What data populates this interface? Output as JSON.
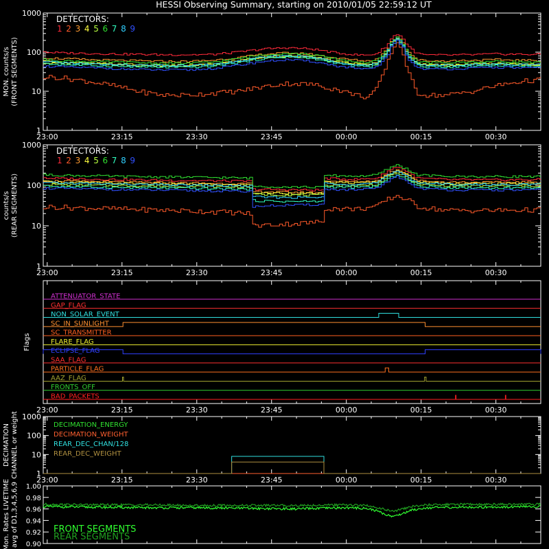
{
  "title": "HESSI Observing Summary, starting on 2010/01/05 22:59:12 UT",
  "time_ticks": [
    "23:00",
    "23:15",
    "23:30",
    "23:45",
    "00:00",
    "00:15",
    "00:30"
  ],
  "colors": {
    "background": "#000000",
    "axes": "#ffffff",
    "det": [
      "#ff2a3a",
      "#ff5a2a",
      "#ff9a30",
      "#ffff40",
      "#b8ff40",
      "#30e030",
      "#30ffc0",
      "#30d0ff",
      "#3050ff"
    ]
  },
  "chart_data": [
    {
      "id": "front",
      "type": "line",
      "ylabel": "MON. counts/s",
      "ylabel2": "(FRONT SEGMENTS)",
      "yscale": "log",
      "ylim": [
        1,
        1000
      ],
      "yticks": [
        "1",
        "10",
        "100",
        "1000"
      ],
      "legend_title": "DETECTORS:",
      "legend": [
        "1",
        "2",
        "3",
        "4",
        "5",
        "6",
        "7",
        "8",
        "9"
      ],
      "x_minutes_since_2300": [
        -0.8,
        3,
        8,
        13,
        18,
        23,
        28,
        33,
        38,
        43,
        48,
        53,
        58,
        62,
        64,
        66,
        68,
        69,
        70,
        71,
        72,
        74,
        76,
        80,
        85,
        90,
        95,
        99
      ],
      "series": [
        {
          "name": "1",
          "values": [
            100,
            95,
            93,
            90,
            88,
            86,
            86,
            87,
            100,
            120,
            130,
            120,
            95,
            85,
            84,
            92,
            150,
            240,
            290,
            240,
            150,
            92,
            84,
            84,
            86,
            90,
            88,
            88
          ]
        },
        {
          "name": "2",
          "values": [
            24,
            22,
            18,
            14,
            10,
            8,
            8,
            9,
            10,
            13,
            16,
            15,
            11,
            8,
            7,
            12,
            50,
            120,
            170,
            120,
            35,
            9,
            8,
            8,
            10,
            14,
            18,
            20
          ]
        },
        {
          "name": "3",
          "values": [
            72,
            68,
            64,
            62,
            60,
            58,
            58,
            62,
            72,
            88,
            96,
            88,
            70,
            62,
            60,
            66,
            120,
            200,
            250,
            200,
            110,
            64,
            60,
            60,
            62,
            64,
            62,
            60
          ]
        },
        {
          "name": "4",
          "values": [
            58,
            55,
            52,
            50,
            48,
            46,
            46,
            50,
            60,
            74,
            82,
            74,
            58,
            50,
            48,
            54,
            100,
            180,
            230,
            180,
            90,
            52,
            48,
            48,
            50,
            52,
            50,
            48
          ]
        },
        {
          "name": "5",
          "values": [
            54,
            52,
            50,
            48,
            46,
            45,
            45,
            48,
            58,
            72,
            80,
            72,
            56,
            48,
            46,
            52,
            96,
            170,
            220,
            170,
            86,
            50,
            46,
            46,
            48,
            50,
            48,
            47
          ]
        },
        {
          "name": "6",
          "values": [
            64,
            60,
            58,
            56,
            54,
            52,
            52,
            56,
            68,
            86,
            94,
            86,
            66,
            56,
            54,
            60,
            110,
            190,
            240,
            190,
            100,
            58,
            54,
            54,
            56,
            58,
            56,
            55
          ]
        },
        {
          "name": "7",
          "values": [
            50,
            48,
            46,
            44,
            42,
            41,
            41,
            44,
            54,
            68,
            76,
            68,
            52,
            44,
            42,
            48,
            90,
            160,
            210,
            160,
            80,
            46,
            42,
            42,
            44,
            46,
            44,
            43
          ]
        },
        {
          "name": "8",
          "values": [
            56,
            54,
            50,
            48,
            46,
            45,
            45,
            48,
            58,
            74,
            82,
            74,
            56,
            48,
            46,
            52,
            98,
            175,
            225,
            175,
            88,
            50,
            46,
            46,
            48,
            50,
            48,
            47
          ]
        },
        {
          "name": "9",
          "values": [
            44,
            42,
            40,
            38,
            36,
            35,
            35,
            38,
            46,
            58,
            64,
            58,
            44,
            38,
            36,
            42,
            80,
            150,
            195,
            150,
            72,
            40,
            37,
            37,
            39,
            41,
            40,
            39
          ]
        }
      ]
    },
    {
      "id": "rear",
      "type": "line",
      "ylabel": "counts/s",
      "ylabel2": "(REAR SEGMENTS)",
      "yscale": "log",
      "ylim": [
        1,
        1000
      ],
      "yticks": [
        "1",
        "10",
        "100",
        "1000"
      ],
      "legend_title": "DETECTORS:",
      "legend": [
        "1",
        "2",
        "3",
        "4",
        "5",
        "6",
        "7",
        "8",
        "9"
      ],
      "x_minutes_since_2300": [
        -0.8,
        5,
        15,
        25,
        35,
        40.6,
        40.7,
        47,
        53,
        55.5,
        55.6,
        62,
        66,
        68,
        70,
        72,
        74,
        80,
        90,
        99
      ],
      "series": [
        {
          "name": "1",
          "values": [
            150,
            145,
            138,
            132,
            128,
            125,
            80,
            78,
            76,
            76,
            148,
            140,
            150,
            220,
            290,
            220,
            150,
            138,
            136,
            138
          ]
        },
        {
          "name": "2",
          "values": [
            30,
            28,
            26,
            24,
            22,
            20,
            10,
            11,
            12,
            13,
            27,
            26,
            30,
            45,
            55,
            45,
            30,
            24,
            24,
            25
          ]
        },
        {
          "name": "3",
          "values": [
            130,
            126,
            120,
            115,
            110,
            108,
            70,
            68,
            66,
            66,
            128,
            122,
            130,
            190,
            250,
            190,
            130,
            120,
            118,
            120
          ]
        },
        {
          "name": "4",
          "values": [
            122,
            118,
            112,
            108,
            104,
            102,
            65,
            64,
            62,
            62,
            120,
            114,
            122,
            180,
            235,
            180,
            122,
            112,
            110,
            112
          ]
        },
        {
          "name": "5",
          "values": [
            105,
            102,
            98,
            95,
            92,
            90,
            60,
            58,
            57,
            57,
            102,
            98,
            105,
            155,
            205,
            155,
            105,
            97,
            96,
            97
          ]
        },
        {
          "name": "6",
          "values": [
            180,
            175,
            165,
            160,
            155,
            150,
            95,
            92,
            90,
            90,
            175,
            168,
            180,
            250,
            320,
            250,
            180,
            166,
            164,
            166
          ]
        },
        {
          "name": "7",
          "values": [
            95,
            92,
            88,
            85,
            82,
            80,
            42,
            40,
            40,
            40,
            92,
            88,
            95,
            140,
            185,
            140,
            95,
            88,
            86,
            88
          ]
        },
        {
          "name": "8",
          "values": [
            115,
            112,
            106,
            102,
            98,
            96,
            52,
            50,
            50,
            50,
            112,
            106,
            115,
            170,
            225,
            170,
            115,
            106,
            104,
            106
          ]
        },
        {
          "name": "9",
          "values": [
            85,
            82,
            78,
            75,
            72,
            70,
            30,
            32,
            33,
            34,
            80,
            76,
            85,
            125,
            165,
            125,
            85,
            77,
            76,
            77
          ]
        }
      ]
    },
    {
      "id": "flags",
      "type": "line",
      "ylabel": "Flags",
      "flags": [
        {
          "label": "ATTENUATOR_STATE",
          "color": "#d030d0",
          "on": []
        },
        {
          "label": "GAP_FLAG",
          "color": "#ff3030",
          "on": []
        },
        {
          "label": "NON_SOLAR_EVENT",
          "color": "#30e0e0",
          "on": [
            [
              66.5,
              70.5
            ]
          ]
        },
        {
          "label": "SC_IN_SUNLIGHT",
          "color": "#ff9030",
          "on": [
            [
              15.2,
              75.8
            ]
          ]
        },
        {
          "label": "SC_TRANSMITTER",
          "color": "#ff6020",
          "on": []
        },
        {
          "label": "FLARE_FLAG",
          "color": "#f0f030",
          "on": []
        },
        {
          "label": "ECLIPSE_FLAG",
          "color": "#3040ff",
          "on": [
            [
              -0.8,
              15.2
            ],
            [
              75.8,
              99
            ]
          ]
        },
        {
          "label": "SAA_FLAG",
          "color": "#ff3030",
          "on": []
        },
        {
          "label": "PARTICLE_FLAG",
          "color": "#ff7020",
          "on": [
            [
              67.8,
              68.5
            ]
          ]
        },
        {
          "label": "AAZ_FLAG",
          "color": "#a0a030",
          "on": [
            [
              15.1,
              15.3
            ],
            [
              75.7,
              76.0
            ]
          ]
        },
        {
          "label": "FRONTS_OFF",
          "color": "#30d030",
          "on": []
        },
        {
          "label": "BAD_PACKETS",
          "color": "#ff2020",
          "on": [
            [
              81.9,
              82.0
            ],
            [
              91.9,
              92.0
            ]
          ]
        }
      ]
    },
    {
      "id": "decimation",
      "type": "line",
      "ylabel": "DECIMATION",
      "ylabel2": "CHANNEL or weight",
      "yscale": "log",
      "ylim": [
        1,
        1000
      ],
      "yticks": [
        "1",
        "10",
        "100",
        "1000"
      ],
      "series": [
        {
          "name": "DECIMATION_ENERGY",
          "color": "#30e030",
          "x": [
            -0.8,
            99
          ],
          "values": [
            1,
            1
          ]
        },
        {
          "name": "DECIMATION_WEIGHT",
          "color": "#ff6030",
          "x": [
            -0.8,
            99
          ],
          "values": [
            1,
            1
          ]
        },
        {
          "name": "REAR_DEC_CHAN/128",
          "color": "#30e0e0",
          "x": [
            -0.8,
            37.0,
            37.0,
            55.5,
            55.5,
            99
          ],
          "values": [
            1,
            1,
            8,
            8,
            1,
            1
          ]
        },
        {
          "name": "REAR_DEC_WEIGHT",
          "color": "#b09040",
          "x": [
            -0.8,
            37.0,
            37.0,
            55.5,
            55.5,
            99
          ],
          "values": [
            1,
            1,
            4,
            4,
            1,
            1
          ]
        }
      ]
    },
    {
      "id": "livetime",
      "type": "line",
      "ylabel": "Mon. Rates LIVETIME",
      "ylabel2": "avg of D1,3,4,5,6,9",
      "ylim": [
        0.9,
        1.0
      ],
      "yticks": [
        "0.90",
        "0.92",
        "0.94",
        "0.96",
        "0.98",
        "1.00"
      ],
      "x_minutes_since_2300": [
        -0.8,
        10,
        20,
        30,
        40,
        50,
        60,
        64,
        66,
        68,
        69.5,
        71,
        73,
        76,
        85,
        99
      ],
      "series": [
        {
          "name": "FRONT SEGMENTS",
          "color": "#30ff30",
          "values": [
            0.964,
            0.963,
            0.962,
            0.962,
            0.961,
            0.96,
            0.962,
            0.961,
            0.957,
            0.95,
            0.947,
            0.951,
            0.958,
            0.962,
            0.963,
            0.964
          ]
        },
        {
          "name": "REAR SEGMENTS",
          "color": "#20a020",
          "values": [
            0.968,
            0.967,
            0.967,
            0.966,
            0.966,
            0.966,
            0.967,
            0.966,
            0.963,
            0.958,
            0.956,
            0.959,
            0.964,
            0.967,
            0.968,
            0.968
          ]
        }
      ]
    }
  ]
}
